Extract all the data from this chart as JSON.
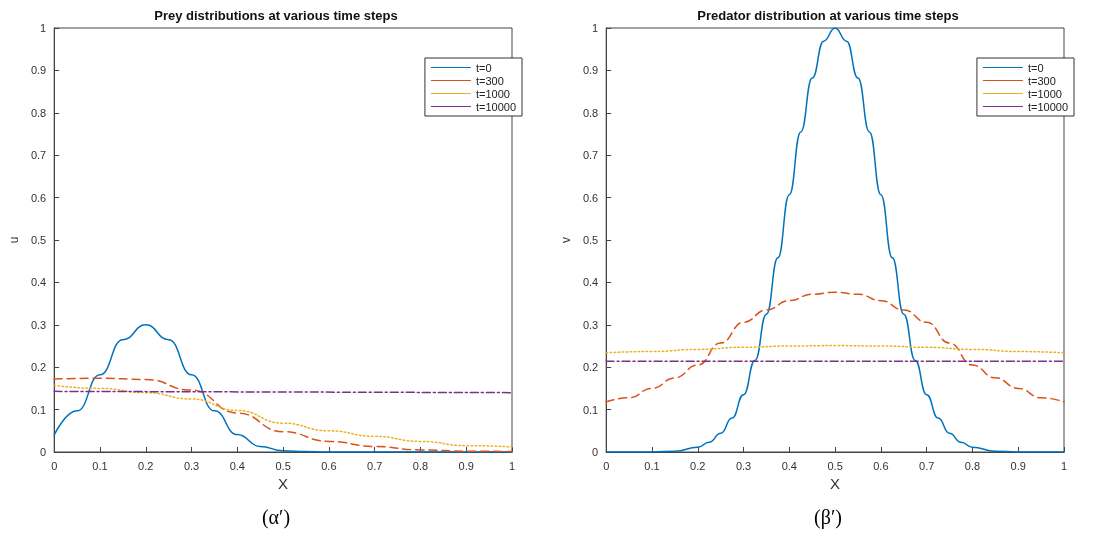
{
  "chart_data": [
    {
      "type": "line",
      "title": "Prey distributions at various time steps",
      "xlabel": "X",
      "ylabel": "u",
      "xlim": [
        0,
        1
      ],
      "ylim": [
        0,
        1
      ],
      "xticks": [
        0,
        0.1,
        0.2,
        0.3,
        0.4,
        0.5,
        0.6,
        0.7,
        0.8,
        0.9,
        1
      ],
      "yticks": [
        0,
        0.1,
        0.2,
        0.3,
        0.4,
        0.5,
        0.6,
        0.7,
        0.8,
        0.9,
        1
      ],
      "grid": false,
      "legend": "top right",
      "marker": "none",
      "annotations": [
        "(α′)"
      ],
      "series": [
        {
          "name": "t=0",
          "color": "#0072bd",
          "line_style": "solid",
          "x": [
            0,
            0.05,
            0.1,
            0.15,
            0.2,
            0.25,
            0.3,
            0.35,
            0.4,
            0.45,
            0.5,
            0.55,
            0.6,
            0.7,
            0.8,
            0.9,
            1
          ],
          "values": [
            0.04,
            0.097,
            0.182,
            0.265,
            0.3,
            0.265,
            0.182,
            0.097,
            0.041,
            0.013,
            0.003,
            0.001,
            0,
            0,
            0,
            0,
            0
          ]
        },
        {
          "name": "t=300",
          "color": "#d95319",
          "line_style": "dashed",
          "x": [
            0,
            0.1,
            0.2,
            0.3,
            0.4,
            0.5,
            0.6,
            0.7,
            0.8,
            0.9,
            1
          ],
          "values": [
            0.172,
            0.174,
            0.171,
            0.146,
            0.092,
            0.048,
            0.025,
            0.013,
            0.005,
            0.002,
            0.001
          ]
        },
        {
          "name": "t=1000",
          "color": "#edb120",
          "line_style": "dotted",
          "x": [
            0,
            0.1,
            0.2,
            0.3,
            0.4,
            0.5,
            0.6,
            0.7,
            0.8,
            0.9,
            1
          ],
          "values": [
            0.157,
            0.15,
            0.14,
            0.125,
            0.098,
            0.068,
            0.05,
            0.037,
            0.025,
            0.015,
            0.012
          ]
        },
        {
          "name": "t=10000",
          "color": "#7e2f8e",
          "line_style": "dashdot",
          "x": [
            0,
            1
          ],
          "values": [
            0.143,
            0.14
          ]
        }
      ]
    },
    {
      "type": "line",
      "title": "Predator distribution at various time steps",
      "xlabel": "X",
      "ylabel": "v",
      "xlim": [
        0,
        1
      ],
      "ylim": [
        0,
        1
      ],
      "xticks": [
        0,
        0.1,
        0.2,
        0.3,
        0.4,
        0.5,
        0.6,
        0.7,
        0.8,
        0.9,
        1
      ],
      "yticks": [
        0,
        0.1,
        0.2,
        0.3,
        0.4,
        0.5,
        0.6,
        0.7,
        0.8,
        0.9,
        1
      ],
      "grid": false,
      "legend": "top right",
      "marker": "none",
      "annotations": [
        "(β′)"
      ],
      "series": [
        {
          "name": "t=0",
          "color": "#0072bd",
          "line_style": "solid",
          "x": [
            0,
            0.1,
            0.15,
            0.2,
            0.225,
            0.25,
            0.275,
            0.3,
            0.325,
            0.35,
            0.375,
            0.4,
            0.425,
            0.45,
            0.475,
            0.5,
            0.525,
            0.55,
            0.575,
            0.6,
            0.625,
            0.65,
            0.675,
            0.7,
            0.725,
            0.75,
            0.775,
            0.8,
            0.85,
            0.9,
            1
          ],
          "values": [
            0,
            0,
            0.002,
            0.011,
            0.023,
            0.044,
            0.08,
            0.135,
            0.216,
            0.325,
            0.458,
            0.607,
            0.755,
            0.882,
            0.969,
            1,
            0.969,
            0.882,
            0.755,
            0.607,
            0.458,
            0.325,
            0.216,
            0.135,
            0.08,
            0.044,
            0.023,
            0.011,
            0.002,
            0,
            0
          ]
        },
        {
          "name": "t=300",
          "color": "#d95319",
          "line_style": "dashed",
          "x": [
            0,
            0.05,
            0.1,
            0.15,
            0.2,
            0.25,
            0.3,
            0.35,
            0.4,
            0.45,
            0.5,
            0.55,
            0.6,
            0.65,
            0.7,
            0.75,
            0.8,
            0.85,
            0.9,
            0.95,
            1
          ],
          "values": [
            0.118,
            0.128,
            0.15,
            0.175,
            0.205,
            0.257,
            0.306,
            0.335,
            0.357,
            0.372,
            0.377,
            0.372,
            0.357,
            0.335,
            0.306,
            0.257,
            0.205,
            0.175,
            0.15,
            0.128,
            0.118
          ]
        },
        {
          "name": "t=1000",
          "color": "#edb120",
          "line_style": "dotted",
          "x": [
            0,
            0.1,
            0.2,
            0.3,
            0.4,
            0.5,
            0.6,
            0.7,
            0.8,
            0.9,
            1
          ],
          "values": [
            0.234,
            0.237,
            0.242,
            0.247,
            0.25,
            0.251,
            0.25,
            0.247,
            0.242,
            0.237,
            0.234
          ]
        },
        {
          "name": "t=10000",
          "color": "#7e2f8e",
          "line_style": "dashdot",
          "x": [
            0,
            1
          ],
          "values": [
            0.214,
            0.214
          ]
        }
      ]
    }
  ]
}
